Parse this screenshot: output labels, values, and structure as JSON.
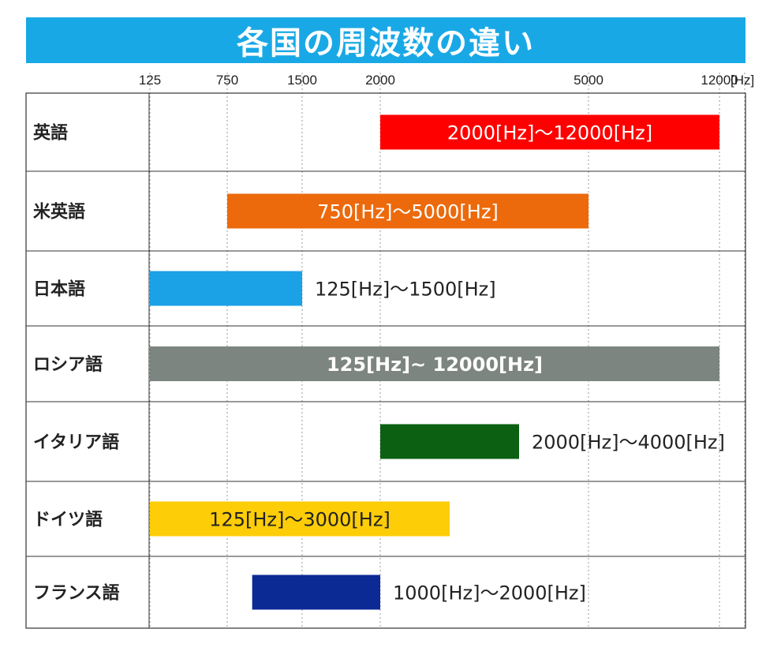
{
  "chart_data": {
    "type": "bar",
    "orientation": "horizontal-range",
    "title": "各国の周波数の違い",
    "x_ticks": [
      {
        "value": 125,
        "label": "125"
      },
      {
        "value": 750,
        "label": "750"
      },
      {
        "value": 1500,
        "label": "1500"
      },
      {
        "value": 2000,
        "label": "2000"
      },
      {
        "value": 5000,
        "label": "5000"
      },
      {
        "value": 12000,
        "label": "12000"
      }
    ],
    "x_unit": "[Hz]",
    "grid": "vertical-dotted",
    "rows": [
      {
        "language": "英語",
        "start": 2000,
        "end": 12000,
        "label": "2000[Hz]～12000[Hz]",
        "color": "#ff0000",
        "label_position": "inside",
        "label_color": "#ffffff"
      },
      {
        "language": "米英語",
        "start": 750,
        "end": 5000,
        "label": "750[Hz]～5000[Hz]",
        "color": "#ec6a0c",
        "label_position": "inside",
        "label_color": "#ffffff"
      },
      {
        "language": "日本語",
        "start": 125,
        "end": 1500,
        "label": "125[Hz]～1500[Hz]",
        "color": "#1ba1e6",
        "label_position": "right",
        "label_color": "#222222"
      },
      {
        "language": "ロシア語",
        "start": 125,
        "end": 12000,
        "label": "125[Hz]~ 12000[Hz]",
        "color": "#7d8580",
        "label_position": "inside",
        "label_color": "#ffffff",
        "label_bold": true
      },
      {
        "language": "イタリア語",
        "start": 2000,
        "end": 4000,
        "label": "2000[Hz]～4000[Hz]",
        "color": "#0b6011",
        "label_position": "right",
        "label_color": "#222222"
      },
      {
        "language": "ドイツ語",
        "start": 125,
        "end": 3000,
        "label": "125[Hz]～3000[Hz]",
        "color": "#fdcd08",
        "label_position": "inside",
        "label_color": "#222222"
      },
      {
        "language": "フランス語",
        "start": 1000,
        "end": 2000,
        "label": "1000[Hz]～2000[Hz]",
        "color": "#0b2a94",
        "label_position": "right",
        "label_color": "#222222"
      }
    ]
  }
}
